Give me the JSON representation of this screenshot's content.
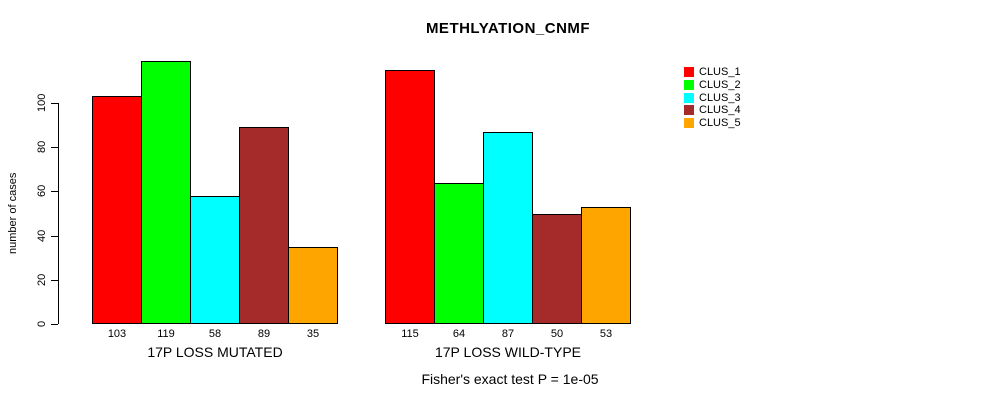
{
  "chart_data": {
    "type": "bar",
    "title": "METHLYATION_CNMF",
    "ylabel": "number of cases",
    "xlabel": "",
    "yticks": [
      0,
      20,
      40,
      60,
      80,
      100
    ],
    "ylim": [
      0,
      119
    ],
    "grid": false,
    "legend_position": "right",
    "value_labels_shown": true,
    "bar_border_color": "#000000",
    "background_color": "#ffffff",
    "text_color": "#000000",
    "categories": [
      "17P LOSS MUTATED",
      "17P LOSS WILD-TYPE"
    ],
    "series": [
      {
        "name": "CLUS_1",
        "color": "#FF0000",
        "values": [
          103,
          115
        ]
      },
      {
        "name": "CLUS_2",
        "color": "#00FF00",
        "values": [
          119,
          64
        ]
      },
      {
        "name": "CLUS_3",
        "color": "#00FFFF",
        "values": [
          58,
          87
        ]
      },
      {
        "name": "CLUS_4",
        "color": "#A52A2A",
        "values": [
          89,
          50
        ]
      },
      {
        "name": "CLUS_5",
        "color": "#FFA500",
        "values": [
          35,
          53
        ]
      }
    ],
    "annotation": "Fisher's exact test P = 1e-05"
  }
}
